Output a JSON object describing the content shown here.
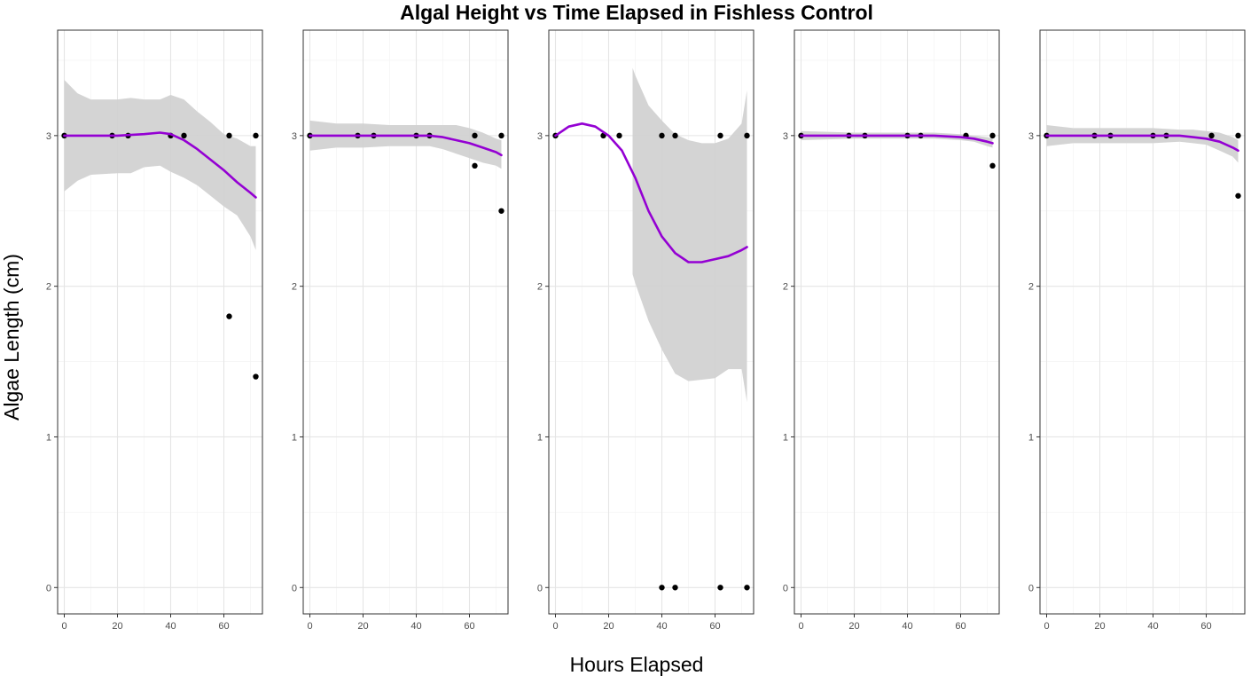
{
  "chart_data": {
    "type": "scatter",
    "title": "Algal Height vs Time Elapsed in Fishless Control",
    "xlabel": "Hours Elapsed",
    "ylabel": "Algae Length (cm)",
    "xlim": [
      -2.5,
      74.5
    ],
    "ylim": [
      -0.175,
      3.7
    ],
    "x_ticks": [
      0,
      20,
      40,
      60
    ],
    "y_ticks": [
      0,
      1,
      2,
      3
    ],
    "grid": true,
    "colors": {
      "smooth": "#9400D3",
      "ribbon": "#d0d0d0",
      "points": "#000000",
      "panel_border": "#333333",
      "grid_major": "#e5e5e5",
      "grid_minor": "#f2f2f2"
    },
    "panels": [
      {
        "points": [
          [
            0,
            3
          ],
          [
            18,
            3
          ],
          [
            24,
            3
          ],
          [
            40,
            3
          ],
          [
            45,
            3
          ],
          [
            62,
            3
          ],
          [
            62,
            1.8
          ],
          [
            72,
            3
          ],
          [
            72,
            1.4
          ]
        ],
        "smooth": [
          [
            0,
            3
          ],
          [
            10,
            3
          ],
          [
            20,
            3
          ],
          [
            30,
            3.01
          ],
          [
            36,
            3.02
          ],
          [
            40,
            3.01
          ],
          [
            45,
            2.97
          ],
          [
            50,
            2.91
          ],
          [
            55,
            2.84
          ],
          [
            60,
            2.77
          ],
          [
            65,
            2.69
          ],
          [
            70,
            2.62
          ],
          [
            72,
            2.59
          ]
        ],
        "ribbon_upper": [
          [
            0,
            3.37
          ],
          [
            5,
            3.28
          ],
          [
            10,
            3.24
          ],
          [
            20,
            3.24
          ],
          [
            25,
            3.25
          ],
          [
            30,
            3.24
          ],
          [
            36,
            3.24
          ],
          [
            40,
            3.27
          ],
          [
            45,
            3.24
          ],
          [
            50,
            3.16
          ],
          [
            55,
            3.09
          ],
          [
            60,
            3.01
          ],
          [
            65,
            2.98
          ],
          [
            70,
            2.93
          ],
          [
            72,
            2.93
          ]
        ],
        "ribbon_lower": [
          [
            0,
            2.63
          ],
          [
            5,
            2.7
          ],
          [
            10,
            2.74
          ],
          [
            20,
            2.75
          ],
          [
            25,
            2.75
          ],
          [
            30,
            2.79
          ],
          [
            36,
            2.8
          ],
          [
            40,
            2.76
          ],
          [
            45,
            2.72
          ],
          [
            50,
            2.67
          ],
          [
            55,
            2.6
          ],
          [
            60,
            2.53
          ],
          [
            65,
            2.47
          ],
          [
            70,
            2.33
          ],
          [
            72,
            2.24
          ]
        ]
      },
      {
        "points": [
          [
            0,
            3
          ],
          [
            18,
            3
          ],
          [
            24,
            3
          ],
          [
            40,
            3
          ],
          [
            45,
            3
          ],
          [
            62,
            3
          ],
          [
            62,
            2.8
          ],
          [
            72,
            3
          ],
          [
            72,
            2.5
          ]
        ],
        "smooth": [
          [
            0,
            3
          ],
          [
            10,
            3
          ],
          [
            20,
            3
          ],
          [
            30,
            3
          ],
          [
            40,
            3
          ],
          [
            45,
            3
          ],
          [
            50,
            2.99
          ],
          [
            55,
            2.97
          ],
          [
            60,
            2.95
          ],
          [
            65,
            2.92
          ],
          [
            70,
            2.89
          ],
          [
            72,
            2.87
          ]
        ],
        "ribbon_upper": [
          [
            0,
            3.1
          ],
          [
            10,
            3.08
          ],
          [
            20,
            3.08
          ],
          [
            30,
            3.07
          ],
          [
            40,
            3.07
          ],
          [
            45,
            3.07
          ],
          [
            50,
            3.07
          ],
          [
            55,
            3.07
          ],
          [
            60,
            3.05
          ],
          [
            65,
            3.02
          ],
          [
            70,
            2.98
          ],
          [
            72,
            2.97
          ]
        ],
        "ribbon_lower": [
          [
            0,
            2.9
          ],
          [
            10,
            2.92
          ],
          [
            20,
            2.92
          ],
          [
            30,
            2.93
          ],
          [
            40,
            2.93
          ],
          [
            45,
            2.93
          ],
          [
            50,
            2.91
          ],
          [
            55,
            2.88
          ],
          [
            60,
            2.85
          ],
          [
            65,
            2.82
          ],
          [
            70,
            2.8
          ],
          [
            72,
            2.78
          ]
        ]
      },
      {
        "points": [
          [
            0,
            3
          ],
          [
            18,
            3
          ],
          [
            24,
            3
          ],
          [
            40,
            3
          ],
          [
            40,
            0
          ],
          [
            45,
            3
          ],
          [
            45,
            0
          ],
          [
            62,
            3
          ],
          [
            62,
            0
          ],
          [
            72,
            3
          ],
          [
            72,
            0
          ]
        ],
        "smooth": [
          [
            0,
            3
          ],
          [
            5,
            3.06
          ],
          [
            10,
            3.08
          ],
          [
            15,
            3.06
          ],
          [
            20,
            3
          ],
          [
            25,
            2.9
          ],
          [
            30,
            2.72
          ],
          [
            35,
            2.5
          ],
          [
            40,
            2.33
          ],
          [
            45,
            2.22
          ],
          [
            50,
            2.16
          ],
          [
            55,
            2.16
          ],
          [
            60,
            2.18
          ],
          [
            65,
            2.2
          ],
          [
            70,
            2.24
          ],
          [
            72,
            2.26
          ]
        ],
        "ribbon_upper": [
          [
            29,
            3.45
          ],
          [
            30,
            3.4
          ],
          [
            35,
            3.2
          ],
          [
            40,
            3.1
          ],
          [
            45,
            3.01
          ],
          [
            50,
            2.97
          ],
          [
            55,
            2.95
          ],
          [
            60,
            2.95
          ],
          [
            65,
            2.98
          ],
          [
            70,
            3.08
          ],
          [
            72,
            3.3
          ]
        ],
        "ribbon_lower": [
          [
            29,
            2.08
          ],
          [
            30,
            2.02
          ],
          [
            35,
            1.77
          ],
          [
            40,
            1.58
          ],
          [
            45,
            1.42
          ],
          [
            50,
            1.37
          ],
          [
            55,
            1.38
          ],
          [
            60,
            1.39
          ],
          [
            65,
            1.45
          ],
          [
            70,
            1.45
          ],
          [
            72,
            1.23
          ]
        ]
      },
      {
        "points": [
          [
            0,
            3
          ],
          [
            18,
            3
          ],
          [
            24,
            3
          ],
          [
            40,
            3
          ],
          [
            45,
            3
          ],
          [
            62,
            3
          ],
          [
            72,
            3
          ],
          [
            72,
            2.8
          ]
        ],
        "smooth": [
          [
            0,
            3
          ],
          [
            10,
            3
          ],
          [
            20,
            3
          ],
          [
            30,
            3
          ],
          [
            40,
            3
          ],
          [
            50,
            3
          ],
          [
            60,
            2.99
          ],
          [
            65,
            2.98
          ],
          [
            70,
            2.96
          ],
          [
            72,
            2.95
          ]
        ],
        "ribbon_upper": [
          [
            0,
            3.03
          ],
          [
            20,
            3.02
          ],
          [
            40,
            3.02
          ],
          [
            50,
            3.02
          ],
          [
            60,
            3.01
          ],
          [
            65,
            3.0
          ],
          [
            70,
            2.99
          ],
          [
            72,
            2.98
          ]
        ],
        "ribbon_lower": [
          [
            0,
            2.97
          ],
          [
            20,
            2.98
          ],
          [
            40,
            2.98
          ],
          [
            50,
            2.98
          ],
          [
            60,
            2.97
          ],
          [
            65,
            2.96
          ],
          [
            70,
            2.93
          ],
          [
            72,
            2.92
          ]
        ]
      },
      {
        "points": [
          [
            0,
            3
          ],
          [
            18,
            3
          ],
          [
            24,
            3
          ],
          [
            40,
            3
          ],
          [
            45,
            3
          ],
          [
            62,
            3
          ],
          [
            72,
            3
          ],
          [
            72,
            2.6
          ]
        ],
        "smooth": [
          [
            0,
            3
          ],
          [
            10,
            3
          ],
          [
            20,
            3
          ],
          [
            30,
            3
          ],
          [
            40,
            3
          ],
          [
            50,
            3
          ],
          [
            55,
            2.99
          ],
          [
            60,
            2.98
          ],
          [
            65,
            2.96
          ],
          [
            70,
            2.92
          ],
          [
            72,
            2.9
          ]
        ],
        "ribbon_upper": [
          [
            0,
            3.07
          ],
          [
            10,
            3.05
          ],
          [
            20,
            3.05
          ],
          [
            30,
            3.05
          ],
          [
            40,
            3.05
          ],
          [
            50,
            3.04
          ],
          [
            55,
            3.04
          ],
          [
            60,
            3.03
          ],
          [
            65,
            3.02
          ],
          [
            70,
            2.99
          ],
          [
            72,
            2.97
          ]
        ],
        "ribbon_lower": [
          [
            0,
            2.93
          ],
          [
            10,
            2.95
          ],
          [
            20,
            2.95
          ],
          [
            30,
            2.95
          ],
          [
            40,
            2.95
          ],
          [
            50,
            2.96
          ],
          [
            55,
            2.95
          ],
          [
            60,
            2.94
          ],
          [
            65,
            2.9
          ],
          [
            70,
            2.86
          ],
          [
            72,
            2.82
          ]
        ]
      }
    ]
  }
}
